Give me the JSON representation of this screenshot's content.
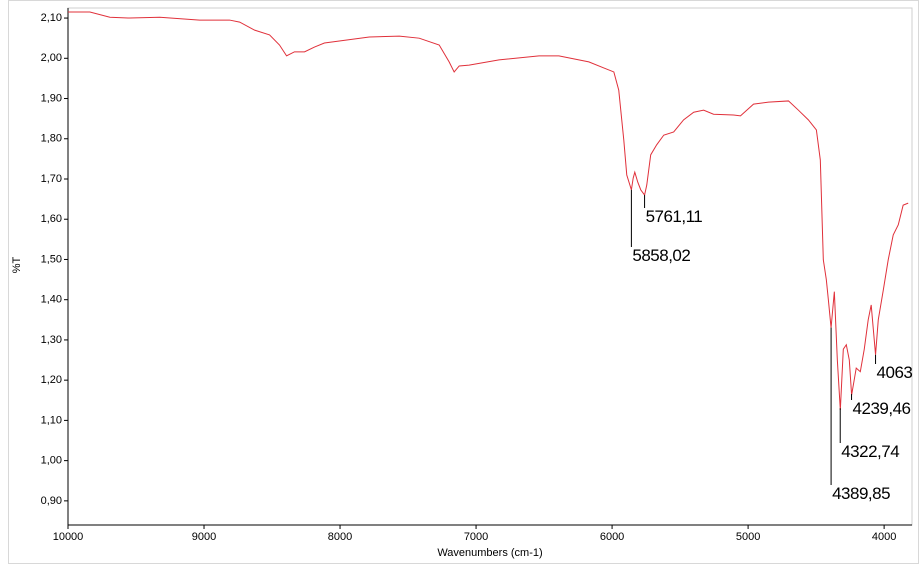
{
  "chart_data": {
    "type": "line",
    "x_label": "Wavenumbers (cm-1)",
    "y_label": "%T",
    "xlim": [
      10000,
      3795
    ],
    "ylim": [
      0.84,
      2.125
    ],
    "xticks": [
      10000,
      9000,
      8000,
      7000,
      6000,
      5000,
      4000
    ],
    "yticks": [
      {
        "value": 0.9,
        "label": "0,90"
      },
      {
        "value": 1.0,
        "label": "1,00"
      },
      {
        "value": 1.1,
        "label": "1,10"
      },
      {
        "value": 1.2,
        "label": "1,20"
      },
      {
        "value": 1.3,
        "label": "1,30"
      },
      {
        "value": 1.4,
        "label": "1,40"
      },
      {
        "value": 1.5,
        "label": "1,50"
      },
      {
        "value": 1.6,
        "label": "1,60"
      },
      {
        "value": 1.7,
        "label": "1,70"
      },
      {
        "value": 1.8,
        "label": "1,80"
      },
      {
        "value": 1.9,
        "label": "1,90"
      },
      {
        "value": 2.0,
        "label": "2,00"
      },
      {
        "value": 2.1,
        "label": "2,10"
      }
    ],
    "grid": false,
    "series": [
      {
        "color": "#e0303a",
        "x": [
          10000,
          9839,
          9692,
          9545,
          9325,
          9032,
          8812,
          8738,
          8628,
          8518,
          8445,
          8393,
          8335,
          8261,
          8188,
          8115,
          8005,
          7785,
          7564,
          7418,
          7271,
          7198,
          7161,
          7124,
          7051,
          6831,
          6537,
          6391,
          6171,
          6061,
          5987,
          5951,
          5914,
          5892,
          5858,
          5845,
          5833,
          5811,
          5789,
          5761,
          5745,
          5716,
          5672,
          5620,
          5547,
          5474,
          5400,
          5327,
          5254,
          5107,
          5056,
          4960,
          4850,
          4703,
          4630,
          4557,
          4498,
          4469,
          4447,
          4425,
          4410,
          4390,
          4366,
          4344,
          4322,
          4300,
          4278,
          4256,
          4239,
          4205,
          4175,
          4146,
          4117,
          4095,
          4063,
          4043,
          4006,
          3970,
          3933,
          3896,
          3860,
          3823
        ],
        "values": [
          2.115,
          2.115,
          2.102,
          2.1,
          2.102,
          2.095,
          2.095,
          2.09,
          2.07,
          2.058,
          2.033,
          2.006,
          2.016,
          2.016,
          2.028,
          2.038,
          2.043,
          2.053,
          2.055,
          2.05,
          2.033,
          1.991,
          1.966,
          1.981,
          1.983,
          1.996,
          2.006,
          2.006,
          1.991,
          1.976,
          1.966,
          1.921,
          1.797,
          1.71,
          1.673,
          1.702,
          1.717,
          1.692,
          1.673,
          1.66,
          1.685,
          1.76,
          1.785,
          1.809,
          1.817,
          1.847,
          1.866,
          1.871,
          1.861,
          1.859,
          1.857,
          1.886,
          1.891,
          1.894,
          1.871,
          1.847,
          1.822,
          1.747,
          1.499,
          1.45,
          1.4,
          1.33,
          1.42,
          1.25,
          1.126,
          1.277,
          1.288,
          1.25,
          1.163,
          1.23,
          1.221,
          1.277,
          1.35,
          1.387,
          1.263,
          1.35,
          1.424,
          1.499,
          1.561,
          1.586,
          1.635,
          1.64
        ]
      }
    ],
    "annotations": [
      {
        "x": 5858.02,
        "label": "5858,02"
      },
      {
        "x": 5761.11,
        "label": "5761,11"
      },
      {
        "x": 4389.85,
        "label": "4389,85"
      },
      {
        "x": 4322.74,
        "label": "4322,74"
      },
      {
        "x": 4239.46,
        "label": "4239,46"
      },
      {
        "x": 4063,
        "label": "4063"
      }
    ]
  }
}
